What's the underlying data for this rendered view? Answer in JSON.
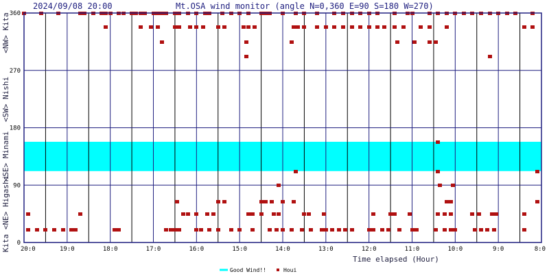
{
  "chart_data": {
    "type": "scatter",
    "timestamp": "2024/09/08 20:00",
    "title": "Mt.OSA wind monitor (angle N=0,360 E=90 S=180 W=270)",
    "xlabel": "Time elapsed (Hour)",
    "x_ticks": [
      "20:0",
      "19:0",
      "18:0",
      "17:0",
      "16:0",
      "15:0",
      "14:0",
      "13:0",
      "12:0",
      "11:0",
      "10:0",
      "9:0",
      "8:0"
    ],
    "y_ticks": [
      "0",
      "90",
      "180",
      "270",
      "360"
    ],
    "y_direction_labels": [
      "Kita <NE> Higashi",
      "<SE> Minami",
      "<SW> Nishi",
      "<NW> Kita"
    ],
    "ylim": [
      0,
      360
    ],
    "xlim_hours_ago": [
      0,
      12
    ],
    "grid": true,
    "colors": {
      "frame": "#202080",
      "grid_major": "#202080",
      "grid_minor": "#000000",
      "good_band": "#00ffff",
      "points": "#b01010"
    },
    "good_wind_band": [
      112,
      158
    ],
    "legend": {
      "placement": "bottom-center",
      "good_label": "Good Wind!!",
      "points_label": "Houi"
    },
    "series": [
      {
        "name": "Houi",
        "points": [
          [
            0.0,
            360
          ],
          [
            0.4,
            360
          ],
          [
            0.8,
            360
          ],
          [
            1.3,
            360
          ],
          [
            1.4,
            360
          ],
          [
            1.6,
            360
          ],
          [
            1.8,
            360
          ],
          [
            1.9,
            360
          ],
          [
            2.0,
            360
          ],
          [
            2.2,
            360
          ],
          [
            2.3,
            360
          ],
          [
            2.5,
            360
          ],
          [
            2.6,
            360
          ],
          [
            2.7,
            360
          ],
          [
            2.8,
            360
          ],
          [
            3.0,
            360
          ],
          [
            3.1,
            360
          ],
          [
            3.2,
            360
          ],
          [
            3.3,
            360
          ],
          [
            3.5,
            360
          ],
          [
            3.6,
            360
          ],
          [
            3.8,
            360
          ],
          [
            4.0,
            360
          ],
          [
            4.2,
            360
          ],
          [
            4.3,
            360
          ],
          [
            4.6,
            360
          ],
          [
            4.8,
            360
          ],
          [
            5.0,
            360
          ],
          [
            5.2,
            360
          ],
          [
            5.5,
            360
          ],
          [
            5.6,
            360
          ],
          [
            5.7,
            360
          ],
          [
            6.0,
            360
          ],
          [
            6.3,
            360
          ],
          [
            6.5,
            360
          ],
          [
            6.8,
            360
          ],
          [
            7.2,
            360
          ],
          [
            7.4,
            360
          ],
          [
            7.6,
            360
          ],
          [
            7.8,
            360
          ],
          [
            8.0,
            360
          ],
          [
            8.2,
            360
          ],
          [
            8.6,
            360
          ],
          [
            8.9,
            360
          ],
          [
            9.0,
            360
          ],
          [
            9.4,
            360
          ],
          [
            9.6,
            360
          ],
          [
            9.8,
            360
          ],
          [
            10.0,
            360
          ],
          [
            10.2,
            360
          ],
          [
            10.4,
            360
          ],
          [
            10.6,
            360
          ],
          [
            10.8,
            360
          ],
          [
            11.0,
            360
          ],
          [
            11.2,
            360
          ],
          [
            11.4,
            360
          ],
          [
            11.8,
            360
          ],
          [
            1.9,
            338
          ],
          [
            2.7,
            338
          ],
          [
            2.95,
            338
          ],
          [
            3.1,
            338
          ],
          [
            3.5,
            338
          ],
          [
            3.6,
            338
          ],
          [
            3.85,
            338
          ],
          [
            4.0,
            338
          ],
          [
            4.15,
            338
          ],
          [
            4.5,
            338
          ],
          [
            4.65,
            338
          ],
          [
            5.1,
            338
          ],
          [
            5.2,
            338
          ],
          [
            5.35,
            338
          ],
          [
            6.25,
            338
          ],
          [
            6.35,
            338
          ],
          [
            6.5,
            338
          ],
          [
            6.8,
            338
          ],
          [
            7.0,
            338
          ],
          [
            7.2,
            338
          ],
          [
            7.4,
            338
          ],
          [
            7.6,
            338
          ],
          [
            7.8,
            338
          ],
          [
            8.0,
            338
          ],
          [
            8.2,
            338
          ],
          [
            8.35,
            338
          ],
          [
            8.6,
            338
          ],
          [
            8.8,
            338
          ],
          [
            9.2,
            338
          ],
          [
            9.4,
            338
          ],
          [
            9.8,
            338
          ],
          [
            11.6,
            338
          ],
          [
            11.8,
            338
          ],
          [
            3.2,
            315
          ],
          [
            5.15,
            315
          ],
          [
            6.2,
            315
          ],
          [
            8.65,
            315
          ],
          [
            9.05,
            315
          ],
          [
            9.4,
            315
          ],
          [
            9.55,
            315
          ],
          [
            5.15,
            292
          ],
          [
            10.8,
            292
          ],
          [
            9.6,
            158
          ],
          [
            6.3,
            112
          ],
          [
            9.6,
            112
          ],
          [
            11.9,
            112
          ],
          [
            5.9,
            90
          ],
          [
            9.65,
            90
          ],
          [
            9.95,
            90
          ],
          [
            3.55,
            65
          ],
          [
            4.5,
            65
          ],
          [
            4.65,
            65
          ],
          [
            5.5,
            65
          ],
          [
            5.6,
            65
          ],
          [
            5.75,
            65
          ],
          [
            6.0,
            65
          ],
          [
            6.25,
            65
          ],
          [
            9.8,
            65
          ],
          [
            9.9,
            65
          ],
          [
            11.9,
            65
          ],
          [
            0.1,
            45
          ],
          [
            1.3,
            45
          ],
          [
            3.7,
            45
          ],
          [
            3.8,
            45
          ],
          [
            4.0,
            45
          ],
          [
            4.25,
            45
          ],
          [
            4.4,
            45
          ],
          [
            5.2,
            45
          ],
          [
            5.3,
            45
          ],
          [
            5.5,
            45
          ],
          [
            5.8,
            45
          ],
          [
            5.9,
            45
          ],
          [
            6.5,
            45
          ],
          [
            6.6,
            45
          ],
          [
            6.95,
            45
          ],
          [
            8.1,
            45
          ],
          [
            8.5,
            45
          ],
          [
            8.6,
            45
          ],
          [
            8.95,
            45
          ],
          [
            9.6,
            45
          ],
          [
            9.75,
            45
          ],
          [
            9.9,
            45
          ],
          [
            10.4,
            45
          ],
          [
            10.55,
            45
          ],
          [
            10.85,
            45
          ],
          [
            10.95,
            45
          ],
          [
            11.6,
            45
          ],
          [
            0.1,
            20
          ],
          [
            0.3,
            20
          ],
          [
            0.5,
            20
          ],
          [
            0.7,
            20
          ],
          [
            0.9,
            20
          ],
          [
            1.1,
            20
          ],
          [
            1.2,
            20
          ],
          [
            2.1,
            20
          ],
          [
            2.2,
            20
          ],
          [
            3.3,
            20
          ],
          [
            3.4,
            20
          ],
          [
            3.5,
            20
          ],
          [
            3.6,
            20
          ],
          [
            4.0,
            20
          ],
          [
            4.1,
            20
          ],
          [
            4.3,
            20
          ],
          [
            4.5,
            20
          ],
          [
            4.8,
            20
          ],
          [
            5.0,
            20
          ],
          [
            5.3,
            20
          ],
          [
            5.7,
            20
          ],
          [
            5.85,
            20
          ],
          [
            6.0,
            20
          ],
          [
            6.2,
            20
          ],
          [
            6.45,
            20
          ],
          [
            6.65,
            20
          ],
          [
            6.9,
            20
          ],
          [
            7.0,
            20
          ],
          [
            7.15,
            20
          ],
          [
            7.3,
            20
          ],
          [
            7.45,
            20
          ],
          [
            7.6,
            20
          ],
          [
            8.0,
            20
          ],
          [
            8.1,
            20
          ],
          [
            8.3,
            20
          ],
          [
            8.45,
            20
          ],
          [
            8.7,
            20
          ],
          [
            9.0,
            20
          ],
          [
            9.1,
            20
          ],
          [
            9.55,
            20
          ],
          [
            9.75,
            20
          ],
          [
            9.9,
            20
          ],
          [
            10.0,
            20
          ],
          [
            10.45,
            20
          ],
          [
            10.6,
            20
          ],
          [
            10.75,
            20
          ],
          [
            10.9,
            20
          ],
          [
            11.6,
            20
          ]
        ]
      }
    ]
  }
}
